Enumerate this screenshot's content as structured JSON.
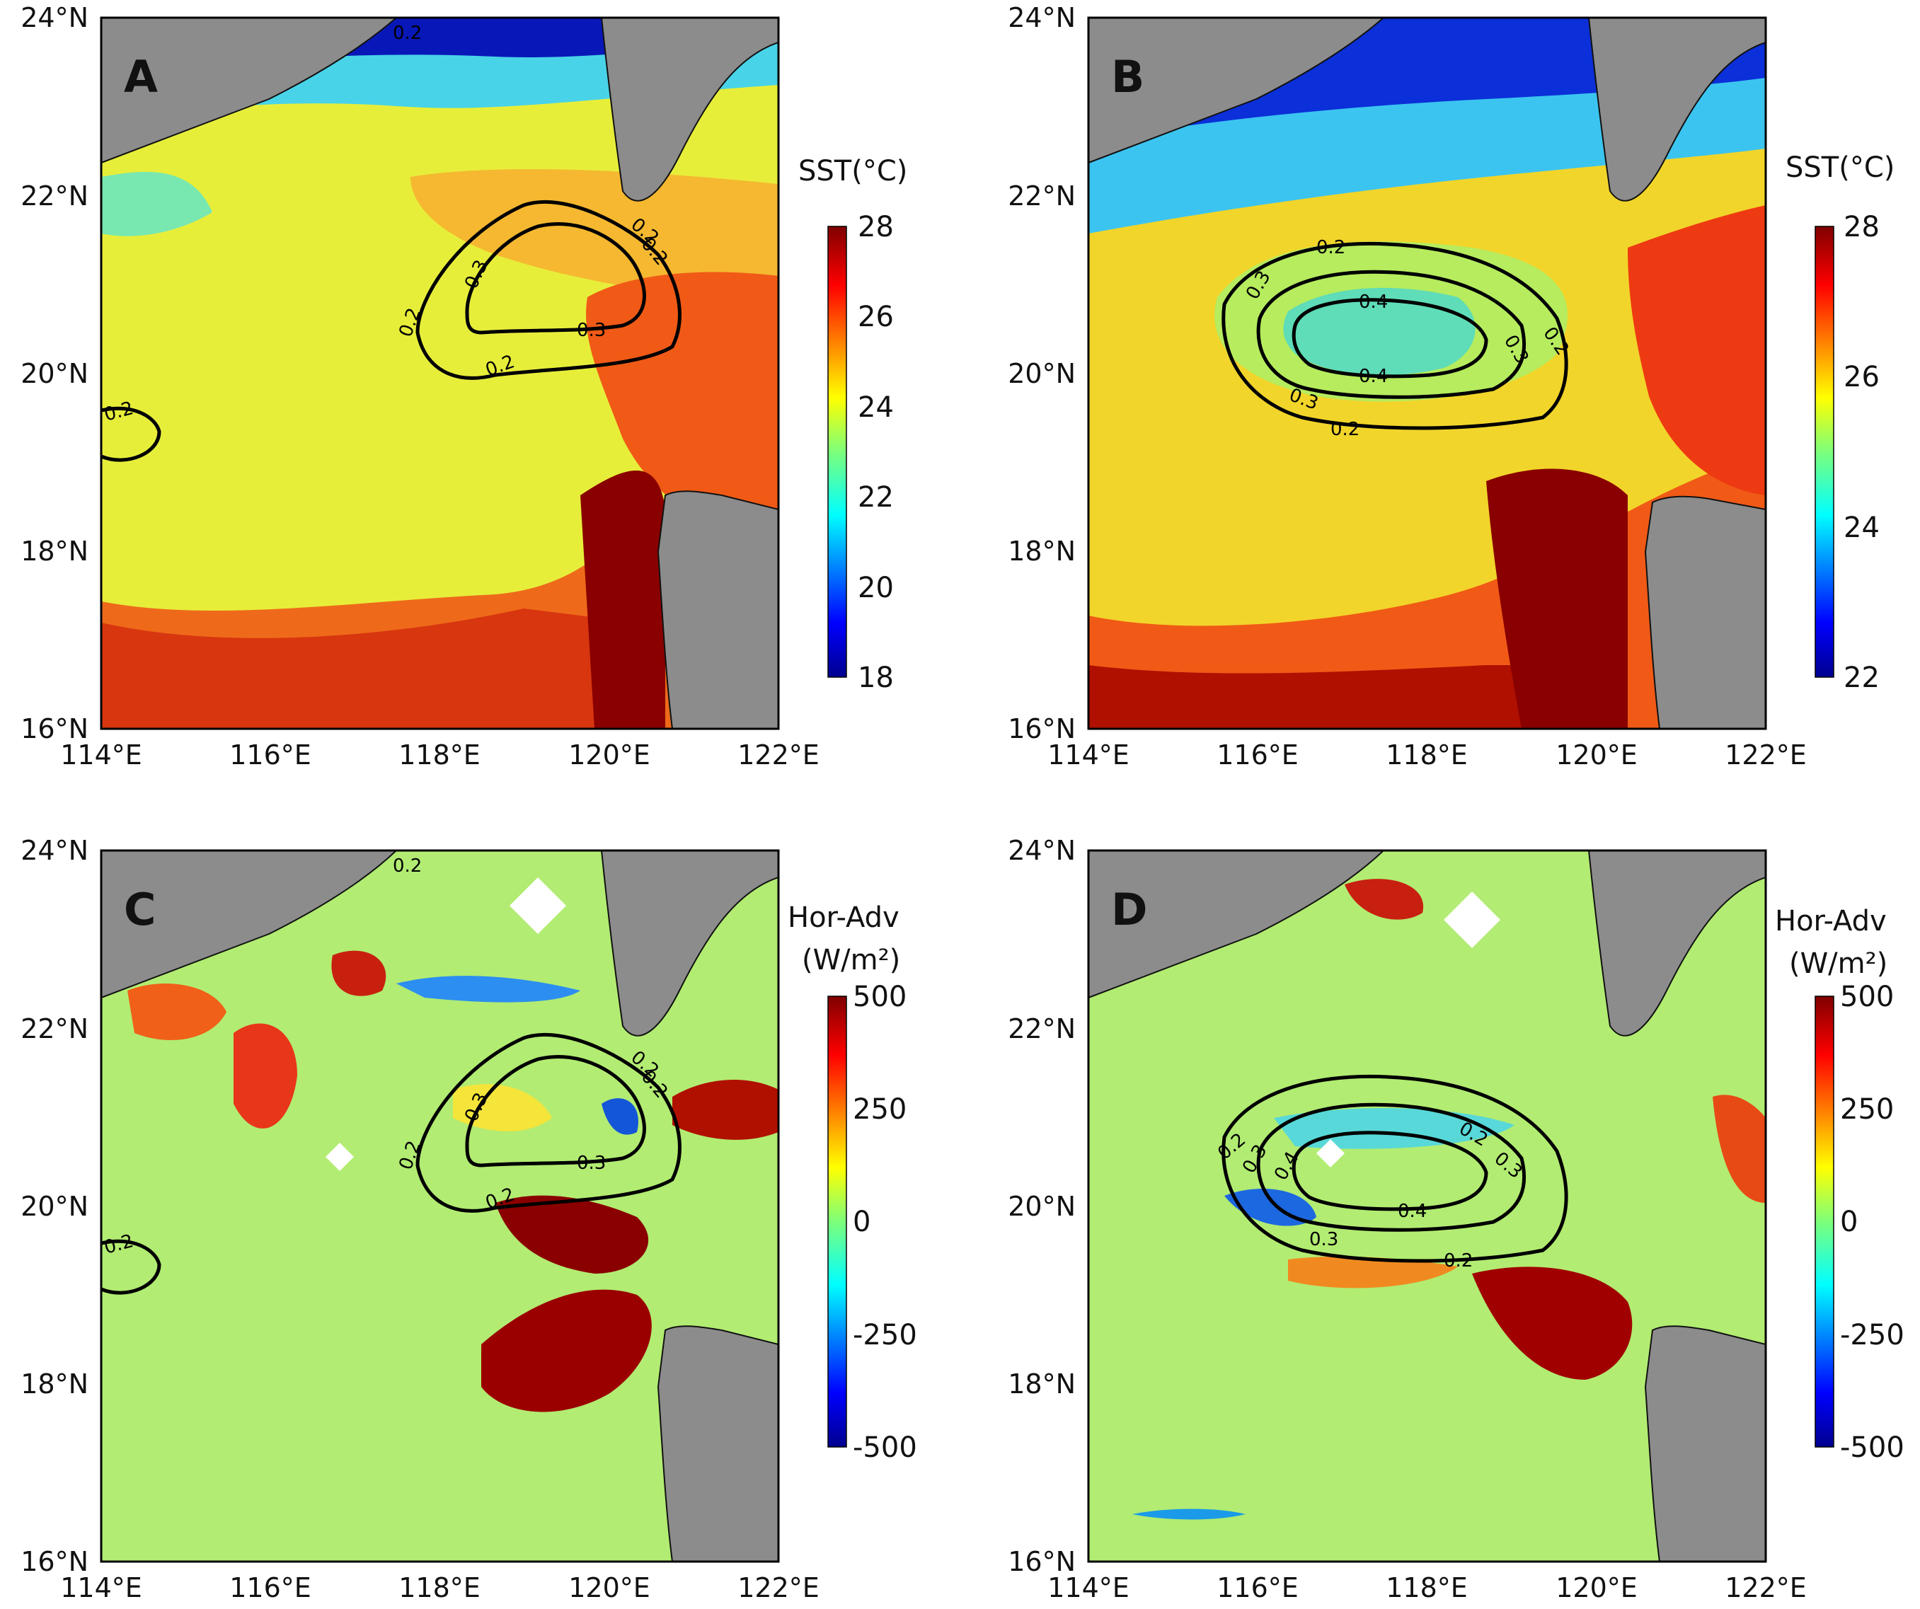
{
  "map_data": {
    "extent": {
      "lon": [
        114,
        122
      ],
      "lat": [
        16,
        24
      ]
    },
    "lon_ticks": [
      "114°E",
      "116°E",
      "118°E",
      "120°E",
      "122°E"
    ],
    "lat_ticks": [
      "16°N",
      "18°N",
      "20°N",
      "22°N",
      "24°N"
    ],
    "panels": [
      {
        "id": "A",
        "label": "A",
        "field": "SST",
        "colorbar": {
          "title": "SST(°C)",
          "title2": "",
          "min": 18,
          "max": 28,
          "ticks": [
            "28",
            "26",
            "24",
            "22",
            "20",
            "18"
          ]
        },
        "contour_labels": [
          "0.2",
          "0.2",
          "0.2",
          "0.2",
          "0.3",
          "0.3",
          "0.2",
          "0.2"
        ]
      },
      {
        "id": "B",
        "label": "B",
        "field": "SST",
        "colorbar": {
          "title": "SST(°C)",
          "title2": "",
          "min": 22,
          "max": 28,
          "ticks": [
            "28",
            "26",
            "24",
            "22"
          ]
        },
        "contour_labels": [
          "0.2",
          "0.2",
          "0.2",
          "0.3",
          "0.3",
          "0.3",
          "0.4",
          "0.4"
        ]
      },
      {
        "id": "C",
        "label": "C",
        "field": "Hor-Adv",
        "colorbar": {
          "title": "Hor-Adv",
          "title2": "(W/m²)",
          "min": -500,
          "max": 500,
          "ticks": [
            "500",
            "250",
            "0",
            "-250",
            "-500"
          ]
        },
        "contour_labels": [
          "0.2",
          "0.2",
          "0.2",
          "0.2",
          "0.3",
          "0.3",
          "0.2",
          "0.2"
        ]
      },
      {
        "id": "D",
        "label": "D",
        "field": "Hor-Adv",
        "colorbar": {
          "title": "Hor-Adv",
          "title2": "(W/m²)",
          "min": -500,
          "max": 500,
          "ticks": [
            "500",
            "250",
            "0",
            "-250",
            "-500"
          ]
        },
        "contour_labels": [
          "0.2",
          "0.2",
          "0.2",
          "0.3",
          "0.3",
          "0.3",
          "0.4",
          "0.4"
        ]
      }
    ]
  }
}
